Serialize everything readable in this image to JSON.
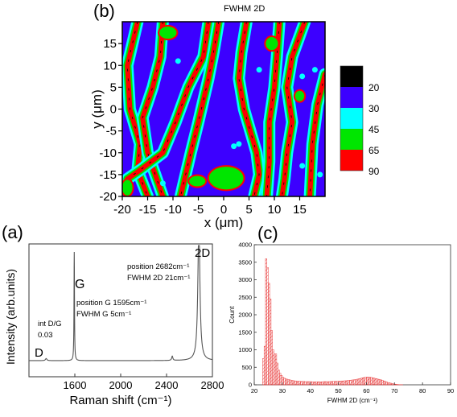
{
  "panel_labels": {
    "b": "(b)",
    "a": "(a)",
    "c": "(c)"
  },
  "map_title": "FWHM 2D",
  "colors": {
    "level_0": "#000000",
    "level_20": "#3c00ff",
    "level_30": "#00ffff",
    "level_45": "#00e600",
    "level_65": "#ff0000",
    "hist_bar": "#e83a3a",
    "spectrum_line": "#555555"
  },
  "chart_data": [
    {
      "id": "b",
      "type": "heatmap",
      "title": "FWHM 2D",
      "xlabel": "x (μm)",
      "ylabel": "y (μm)",
      "xlim": [
        -20,
        20
      ],
      "ylim": [
        -20,
        20
      ],
      "x_ticks": [
        "-20",
        "-15",
        "-10",
        "-5",
        "0",
        "5",
        "10",
        "15"
      ],
      "x_tick_values": [
        -20,
        -15,
        -10,
        -5,
        0,
        5,
        10,
        15
      ],
      "y_ticks": [
        "15",
        "10",
        "5",
        "0",
        "-5",
        "-10",
        "-15",
        "-20"
      ],
      "y_tick_values": [
        15,
        10,
        5,
        0,
        -5,
        -10,
        -15,
        -20
      ],
      "colorbar": {
        "labels": [
          "20",
          "30",
          "45",
          "65",
          "90"
        ],
        "levels": [
          {
            "color": "#000000"
          },
          {
            "color": "#3c00ff"
          },
          {
            "color": "#00ffff"
          },
          {
            "color": "#00e600"
          },
          {
            "color": "#ff0000"
          }
        ]
      },
      "background_level": "#3c00ff",
      "ridges": [
        {
          "pts": [
            [
              -17,
              20
            ],
            [
              -19,
              10
            ],
            [
              -18.5,
              0
            ],
            [
              -16.5,
              -8
            ],
            [
              -17,
              -14
            ],
            [
              -15,
              -20
            ]
          ]
        },
        {
          "pts": [
            [
              -12,
              20
            ],
            [
              -12.5,
              12
            ],
            [
              -14,
              5
            ],
            [
              -16,
              -2
            ],
            [
              -15,
              -10
            ],
            [
              -12,
              -20
            ]
          ]
        },
        {
          "pts": [
            [
              -3,
              20
            ],
            [
              -4,
              12
            ],
            [
              -7,
              5
            ],
            [
              -9.5,
              -3
            ],
            [
              -12,
              -10
            ],
            [
              -16.5,
              -14
            ],
            [
              -19,
              -16
            ]
          ]
        },
        {
          "pts": [
            [
              -1,
              20
            ],
            [
              -2,
              13
            ],
            [
              -3,
              7
            ],
            [
              -5,
              -3
            ],
            [
              -6.5,
              -10
            ],
            [
              -8.5,
              -20
            ]
          ]
        },
        {
          "pts": [
            [
              4.5,
              20
            ],
            [
              3.5,
              13
            ],
            [
              3,
              7
            ],
            [
              4,
              0
            ],
            [
              5,
              -4
            ],
            [
              6.5,
              -10
            ],
            [
              7,
              -15
            ],
            [
              6,
              -20
            ]
          ]
        },
        {
          "pts": [
            [
              11,
              20
            ],
            [
              10.5,
              12
            ],
            [
              10,
              5
            ],
            [
              9,
              -3
            ],
            [
              9,
              -12
            ],
            [
              8.5,
              -20
            ]
          ]
        },
        {
          "pts": [
            [
              16,
              20
            ],
            [
              13.5,
              12
            ],
            [
              12.5,
              5
            ],
            [
              13.5,
              -3
            ],
            [
              12.5,
              -10
            ],
            [
              12,
              -16
            ],
            [
              11.5,
              -20
            ]
          ]
        },
        {
          "pts": [
            [
              20,
              8
            ],
            [
              18.5,
              1
            ],
            [
              17.5,
              -8
            ],
            [
              17,
              -20
            ]
          ]
        }
      ],
      "blobs": [
        {
          "cx": 0.5,
          "cy": -15.8,
          "rx": 3.4,
          "ry": 2.6
        },
        {
          "cx": -5.2,
          "cy": -16.5,
          "rx": 1.6,
          "ry": 1.2
        },
        {
          "cx": -11,
          "cy": 17.5,
          "rx": 1.7,
          "ry": 1.4
        },
        {
          "cx": 9.5,
          "cy": 15,
          "rx": 1.2,
          "ry": 1.5
        },
        {
          "cx": -19,
          "cy": -18,
          "rx": 1,
          "ry": 1.8
        },
        {
          "cx": 15,
          "cy": 3,
          "rx": 0.9,
          "ry": 1.2
        }
      ],
      "spots": [
        {
          "x": 15.5,
          "y": 7.5
        },
        {
          "x": 18,
          "y": 9
        },
        {
          "x": 2,
          "y": -8.5
        },
        {
          "x": 3,
          "y": -8
        },
        {
          "x": -12,
          "y": -17
        },
        {
          "x": 19,
          "y": -15
        },
        {
          "x": 15.5,
          "y": -13
        },
        {
          "x": 7,
          "y": 9
        },
        {
          "x": -9,
          "y": 11
        }
      ]
    },
    {
      "id": "a",
      "type": "line",
      "xlabel": "Raman shift (cm⁻¹)",
      "ylabel": "Intensity (arb.units)",
      "xlim": [
        1200,
        2800
      ],
      "x_ticks": [
        "1600",
        "2000",
        "2400",
        "2800"
      ],
      "x_tick_values": [
        1600,
        2000,
        2400,
        2800
      ],
      "peaks": [
        {
          "label": "D",
          "x": 1350
        },
        {
          "label": "G",
          "x": 1595
        },
        {
          "label": "2D",
          "x": 2682
        }
      ],
      "annotations": {
        "pos_2d": "position 2682cm⁻¹",
        "fwhm_2d": "FWHM 2D 21cm⁻¹",
        "pos_g": "position G 1595cm⁻¹",
        "fwhm_g": "FWHM G 5cm⁻¹",
        "int_dg_1": "int D/G",
        "int_dg_2": "0.03"
      },
      "components": [
        {
          "center": 1595,
          "width": 5,
          "amp": 1.0
        },
        {
          "center": 2682,
          "width": 21,
          "amp": 1.28
        },
        {
          "center": 2450,
          "width": 12,
          "amp": 0.04
        },
        {
          "center": 1350,
          "width": 15,
          "amp": 0.02
        }
      ]
    },
    {
      "id": "c",
      "type": "bar",
      "xlabel": "FWHM 2D (cm⁻¹)",
      "ylabel": "Count",
      "xlim": [
        20,
        90
      ],
      "ylim": [
        0,
        4000
      ],
      "x_ticks": [
        "20",
        "30",
        "40",
        "50",
        "60",
        "70",
        "80",
        "90"
      ],
      "x_tick_values": [
        20,
        30,
        40,
        50,
        60,
        70,
        80,
        90
      ],
      "y_ticks": [
        "0",
        "500",
        "1000",
        "1500",
        "2000",
        "2500",
        "3000",
        "3500",
        "4000"
      ],
      "y_tick_values": [
        0,
        500,
        1000,
        1500,
        2000,
        2500,
        3000,
        3500,
        4000
      ],
      "bin_start": 23,
      "bin_width": 0.5,
      "values": [
        750,
        1100,
        3600,
        3350,
        2900,
        2450,
        1550,
        1000,
        880,
        880,
        620,
        420,
        330,
        270,
        220,
        190,
        170,
        160,
        150,
        140,
        130,
        120,
        115,
        110,
        105,
        100,
        100,
        95,
        95,
        95,
        90,
        90,
        90,
        90,
        90,
        85,
        85,
        85,
        85,
        85,
        85,
        85,
        85,
        90,
        90,
        90,
        90,
        90,
        95,
        95,
        95,
        100,
        100,
        100,
        105,
        105,
        110,
        110,
        115,
        115,
        120,
        125,
        130,
        135,
        140,
        145,
        150,
        160,
        170,
        180,
        190,
        200,
        210,
        215,
        220,
        220,
        215,
        210,
        200,
        190,
        180,
        170,
        160,
        150,
        140,
        125,
        110,
        95,
        80,
        65,
        55,
        45,
        35,
        25,
        18,
        12,
        8,
        5,
        3,
        2
      ]
    }
  ]
}
